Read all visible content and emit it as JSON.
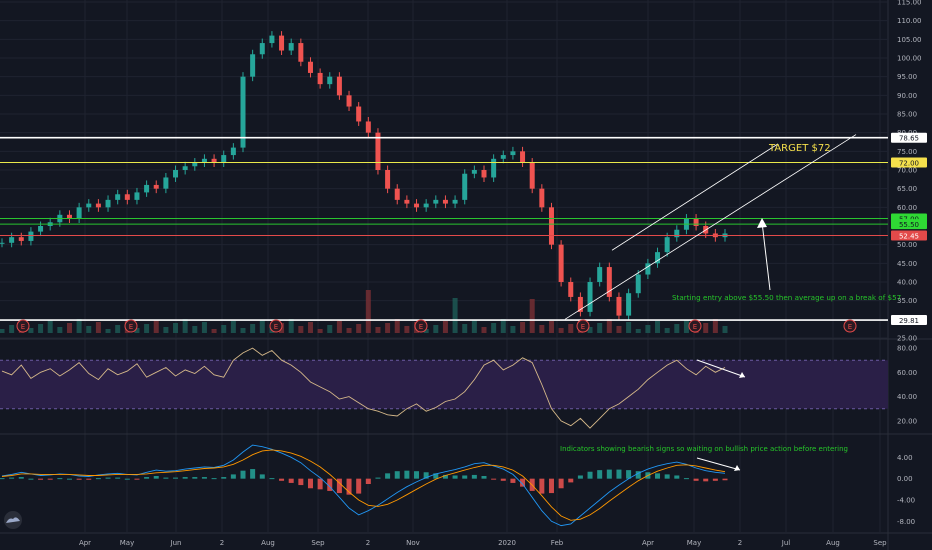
{
  "chart_data": {
    "type": "candlestick",
    "colors": {
      "background": "#131722",
      "grid": "#1f2330",
      "axis_text": "#b2b5be",
      "up": "#26a69a",
      "down": "#ef5350",
      "rsi_line": "#d6b98a",
      "rsi_band": "#2a1f47",
      "macd_line": "#2196f3",
      "signal_line": "#ff9800",
      "annotation": "#26c629",
      "target_text": "#f5e04c",
      "hline_white": "#ffffff",
      "hline_yellow": "#e9e94a",
      "hline_green": "#29c42f",
      "hline_red": "#e34a4a"
    },
    "x_labels": [
      "Apr",
      "May",
      "Jun",
      "2",
      "Aug",
      "Sep",
      "2",
      "Nov",
      "2020",
      "Feb",
      "Apr",
      "May",
      "2",
      "Jul",
      "Aug",
      "Sep"
    ],
    "price_axis": {
      "ylim": [
        25,
        115
      ],
      "ticks": [
        "115.00",
        "110.00",
        "105.00",
        "100.00",
        "95.00",
        "90.00",
        "85.00",
        "80.00",
        "75.00",
        "70.00",
        "65.00",
        "60.00",
        "50.00",
        "45.00",
        "40.00",
        "35.00",
        "25.00"
      ]
    },
    "price_series": [
      50.5,
      52,
      51,
      53.5,
      55,
      56,
      58,
      57,
      60,
      61,
      60,
      62,
      63.5,
      62,
      64,
      66,
      65,
      68,
      70,
      71,
      72,
      73,
      72,
      74,
      76,
      95,
      101,
      104,
      106,
      102,
      104,
      99,
      96,
      93,
      95,
      90,
      87,
      83,
      80,
      70,
      65,
      62,
      61,
      60,
      61,
      62,
      61,
      62,
      69,
      70,
      68,
      73,
      74,
      75,
      72,
      65,
      60,
      50,
      40,
      36,
      32,
      40,
      44,
      36,
      31,
      37,
      42,
      45,
      48,
      52,
      54,
      57,
      55,
      53,
      52,
      53
    ],
    "horizontal_levels": [
      {
        "value": 78.65,
        "label": "78.65",
        "style": "white"
      },
      {
        "value": 72.0,
        "label": "72.00",
        "style": "yellow"
      },
      {
        "value": 57.0,
        "label": "57.00",
        "style": "green"
      },
      {
        "value": 55.5,
        "label": "55.50",
        "style": "green"
      },
      {
        "value": 52.45,
        "label": "52.45",
        "style": "red"
      },
      {
        "value": 29.81,
        "label": "29.81",
        "style": "white"
      }
    ],
    "earnings_markers": [
      "E",
      "E",
      "E",
      "E",
      "E",
      "E",
      "E"
    ],
    "rsi": {
      "ylim": [
        10,
        85
      ],
      "ticks": [
        "80.00",
        "60.00",
        "40.00",
        "20.00"
      ],
      "upper_band": 70,
      "lower_band": 30,
      "values": [
        61,
        58,
        66,
        55,
        60,
        63,
        57,
        62,
        68,
        59,
        54,
        63,
        58,
        61,
        67,
        56,
        60,
        64,
        57,
        62,
        59,
        65,
        58,
        56,
        70,
        76,
        80,
        74,
        78,
        70,
        66,
        60,
        52,
        48,
        44,
        38,
        40,
        35,
        30,
        28,
        25,
        24,
        30,
        34,
        28,
        31,
        36,
        38,
        44,
        54,
        66,
        70,
        62,
        66,
        72,
        68,
        50,
        30,
        20,
        16,
        22,
        14,
        22,
        30,
        34,
        40,
        46,
        54,
        60,
        66,
        70,
        63,
        58,
        65,
        60,
        64
      ],
      "arrow_label": ""
    },
    "macd": {
      "ylim": [
        -10,
        8
      ],
      "ticks": [
        "4.00",
        "0.00",
        "-4.00",
        "-8.00"
      ],
      "macd_line": [
        0.5,
        0.8,
        1.2,
        0.9,
        0.6,
        0.7,
        0.9,
        0.8,
        0.5,
        0.4,
        0.7,
        0.9,
        1.0,
        0.8,
        0.7,
        1.2,
        1.6,
        1.4,
        1.5,
        1.8,
        2.0,
        2.2,
        2.1,
        2.5,
        3.5,
        5.0,
        6.3,
        6.0,
        5.5,
        4.8,
        4.0,
        3.0,
        1.5,
        0.2,
        -1.5,
        -3.5,
        -5.5,
        -6.8,
        -6.0,
        -5.0,
        -3.8,
        -2.6,
        -1.5,
        -0.6,
        0.2,
        0.9,
        1.3,
        1.7,
        2.2,
        2.8,
        3.0,
        2.4,
        1.8,
        0.8,
        -1.0,
        -3.5,
        -6.0,
        -8.0,
        -8.8,
        -8.5,
        -7.0,
        -5.5,
        -4.0,
        -2.5,
        -1.2,
        0.0,
        1.0,
        1.8,
        2.4,
        2.8,
        3.1,
        2.7,
        2.0,
        1.5,
        1.2,
        1.0
      ],
      "signal_line": [
        0.4,
        0.6,
        0.9,
        0.9,
        0.8,
        0.8,
        0.8,
        0.8,
        0.7,
        0.6,
        0.6,
        0.7,
        0.8,
        0.8,
        0.8,
        0.9,
        1.1,
        1.2,
        1.3,
        1.5,
        1.7,
        1.9,
        2.0,
        2.2,
        2.7,
        3.5,
        4.5,
        5.2,
        5.4,
        5.2,
        4.8,
        4.2,
        3.3,
        2.2,
        0.8,
        -0.8,
        -2.5,
        -4.0,
        -5.0,
        -5.2,
        -4.8,
        -4.0,
        -3.0,
        -2.0,
        -1.0,
        -0.1,
        0.6,
        1.1,
        1.6,
        2.1,
        2.5,
        2.5,
        2.2,
        1.6,
        0.5,
        -1.2,
        -3.2,
        -5.3,
        -7.0,
        -7.8,
        -7.6,
        -6.8,
        -5.6,
        -4.2,
        -2.9,
        -1.6,
        -0.4,
        0.6,
        1.4,
        2.0,
        2.5,
        2.6,
        2.4,
        2.0,
        1.6,
        1.3
      ]
    },
    "annotations": {
      "target": "TARGET $72",
      "entry_note": "Starting entry above $55.50 then average up on a break of $57",
      "indicator_note": "Indicators showing bearish signs so waiting on bullish price action before entering"
    }
  }
}
